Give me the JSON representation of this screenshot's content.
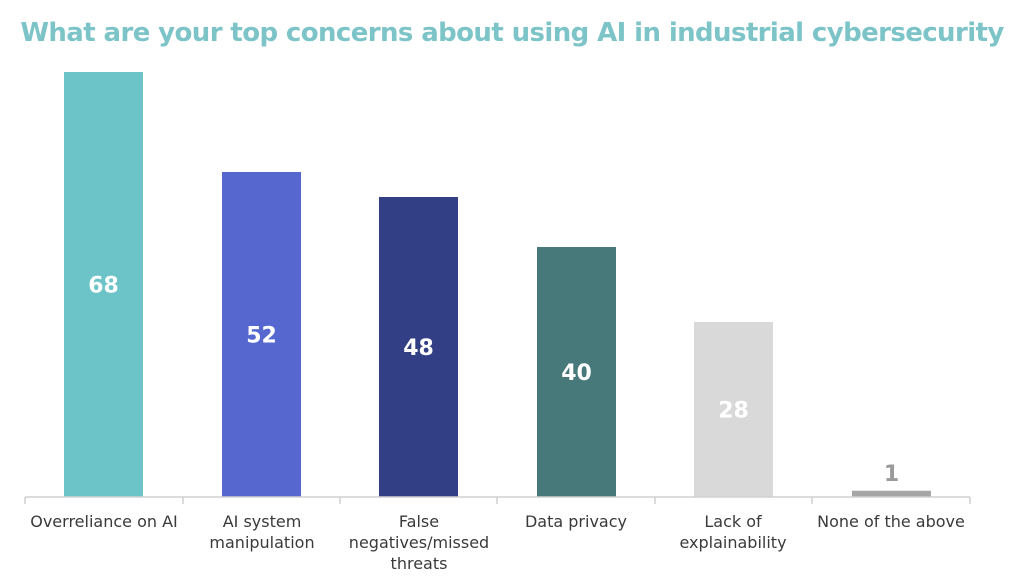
{
  "chart_data": {
    "type": "bar",
    "title": "What are your top concerns about using AI in industrial cybersecurity",
    "categories": [
      "Overreliance on AI",
      "AI system manipulation",
      "False negatives/missed threats",
      "Data privacy",
      "Lack of explainability",
      "None of the above"
    ],
    "category_lines": [
      [
        "Overreliance on AI"
      ],
      [
        "AI system",
        "manipulation"
      ],
      [
        "False",
        "negatives/missed",
        "threats"
      ],
      [
        "Data privacy"
      ],
      [
        "Lack of",
        "explainability"
      ],
      [
        "None of the above"
      ]
    ],
    "values": [
      68,
      52,
      48,
      40,
      28,
      1
    ],
    "value_labels": [
      "68",
      "52",
      "48",
      "40",
      "28",
      "1"
    ],
    "colors": [
      "#6cc4c8",
      "#5668cf",
      "#333f85",
      "#47797a",
      "#d9d9d9",
      "#a6a6a6"
    ],
    "label_colors": [
      "#ffffff",
      "#ffffff",
      "#ffffff",
      "#ffffff",
      "#ffffff",
      "#9a9a9a"
    ],
    "ylim": [
      0,
      68
    ],
    "grid": false,
    "xlabel": "",
    "ylabel": ""
  }
}
